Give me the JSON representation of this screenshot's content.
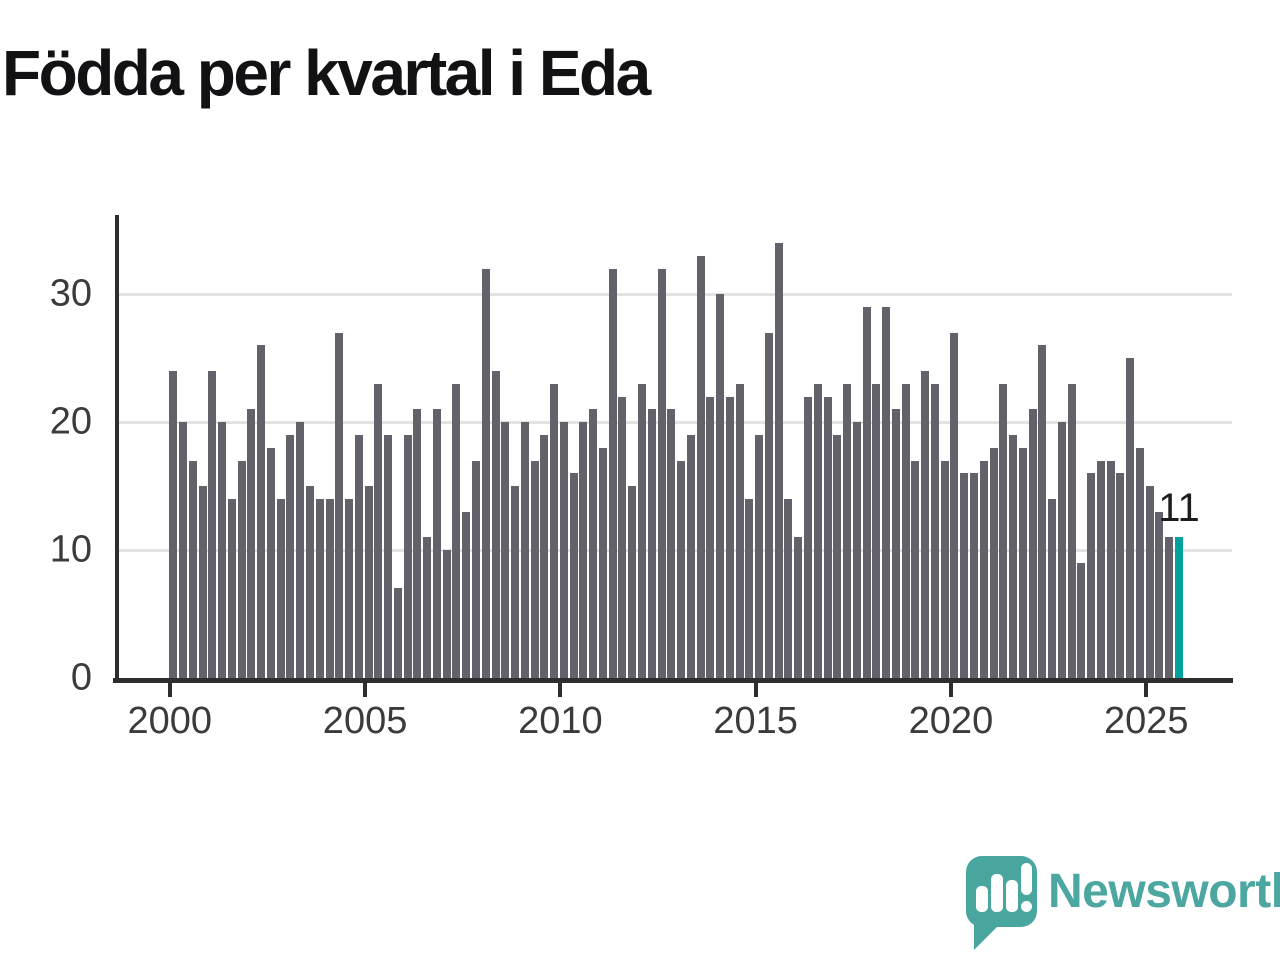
{
  "title": "Födda per kvartal i Eda",
  "annotation": {
    "last_value_label": "11"
  },
  "logo": {
    "text": "Newsworthy"
  },
  "colors": {
    "bar": "#63626a",
    "highlight": "#00a29b",
    "grid": "#e3e3e3",
    "axis": "#2e2e2e",
    "tick_text": "#3b3b3b",
    "title_text": "#121215",
    "logo_teal": "#48a69e"
  },
  "chart_data": {
    "type": "bar",
    "title": "Födda per kvartal i Eda",
    "x_start": "2000-Q1",
    "x_end": "2025-Q4",
    "quarters_per_year": 4,
    "values": [
      24,
      20,
      17,
      15,
      24,
      20,
      14,
      17,
      21,
      26,
      18,
      14,
      19,
      20,
      15,
      14,
      14,
      27,
      14,
      19,
      15,
      23,
      19,
      7,
      19,
      21,
      11,
      21,
      10,
      23,
      13,
      17,
      32,
      24,
      20,
      15,
      20,
      17,
      19,
      23,
      20,
      16,
      20,
      21,
      18,
      32,
      22,
      15,
      23,
      21,
      32,
      21,
      17,
      19,
      33,
      22,
      30,
      22,
      23,
      14,
      19,
      27,
      34,
      14,
      11,
      22,
      23,
      22,
      19,
      23,
      20,
      29,
      23,
      29,
      21,
      23,
      17,
      24,
      23,
      17,
      27,
      16,
      16,
      17,
      18,
      23,
      19,
      18,
      21,
      26,
      14,
      20,
      23,
      9,
      16,
      17,
      17,
      16,
      25,
      18,
      15,
      13,
      11,
      11
    ],
    "highlight_last": true,
    "last_value_label": "11",
    "x_tick_labels": [
      "2000",
      "2005",
      "2010",
      "2015",
      "2020",
      "2025"
    ],
    "x_tick_every_n_quarters": 20,
    "y_ticks": [
      0,
      10,
      20,
      30
    ],
    "ylim": [
      0,
      35
    ],
    "grid": "horizontal",
    "legend": "none",
    "xlabel": "",
    "ylabel": ""
  }
}
